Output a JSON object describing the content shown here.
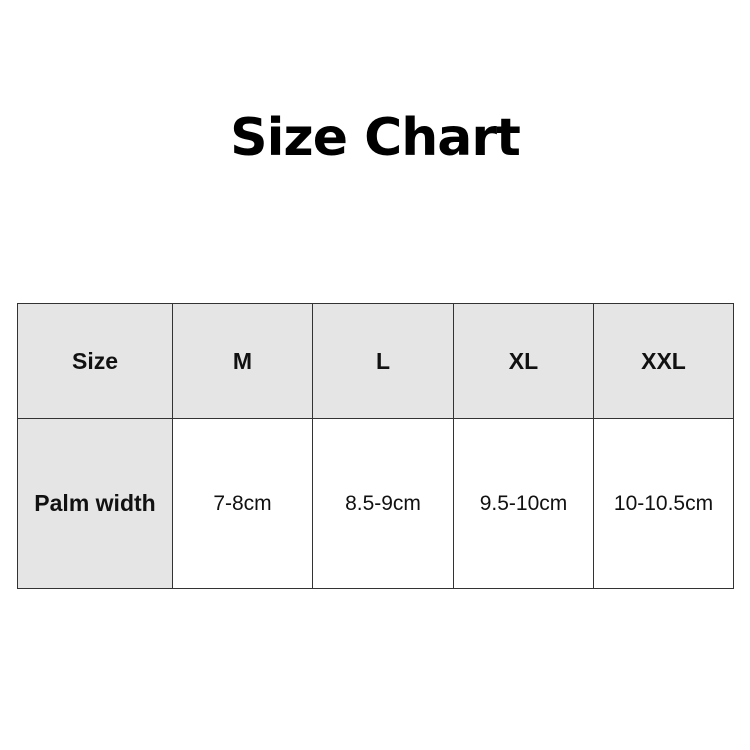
{
  "title": "Size Chart",
  "header": [
    "Size",
    "M",
    "L",
    "XL",
    "XXL"
  ],
  "rows": [
    {
      "label": "Palm width",
      "values": [
        "7-8cm",
        "8.5-9cm",
        "9.5-10cm",
        "10-10.5cm"
      ]
    }
  ],
  "colors": {
    "header_fill": "#e6e5e6",
    "border": "#333333"
  }
}
